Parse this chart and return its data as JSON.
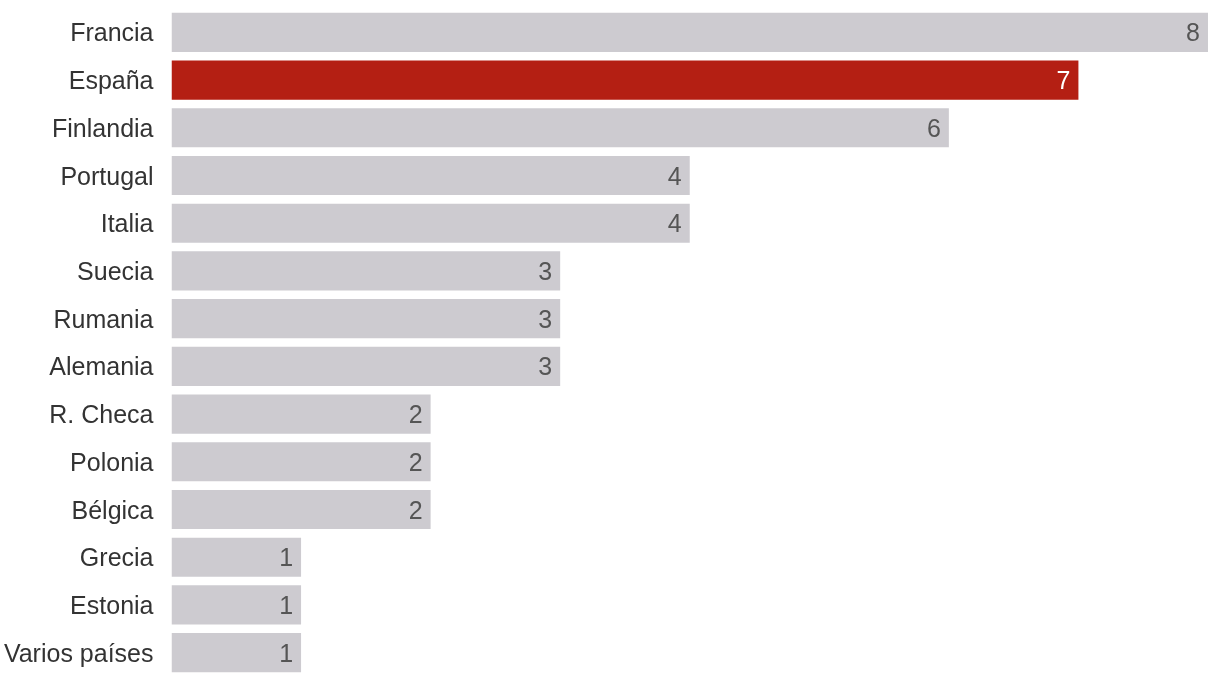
{
  "chart_data": {
    "type": "bar",
    "orientation": "horizontal",
    "data_labels": true,
    "grid": false,
    "categories": [
      "Francia",
      "España",
      "Finlandia",
      "Portugal",
      "Italia",
      "Suecia",
      "Rumania",
      "Alemania",
      "R. Checa",
      "Polonia",
      "Bélgica",
      "Grecia",
      "Estonia",
      "Varios países"
    ],
    "values": [
      8,
      7,
      6,
      4,
      4,
      3,
      3,
      3,
      2,
      2,
      2,
      1,
      1,
      1
    ],
    "colors": [
      "#cdcbd0",
      "#b41f13",
      "#cdcbd0",
      "#cdcbd0",
      "#cdcbd0",
      "#cdcbd0",
      "#cdcbd0",
      "#cdcbd0",
      "#cdcbd0",
      "#cdcbd0",
      "#cdcbd0",
      "#cdcbd0",
      "#cdcbd0",
      "#cdcbd0"
    ]
  }
}
